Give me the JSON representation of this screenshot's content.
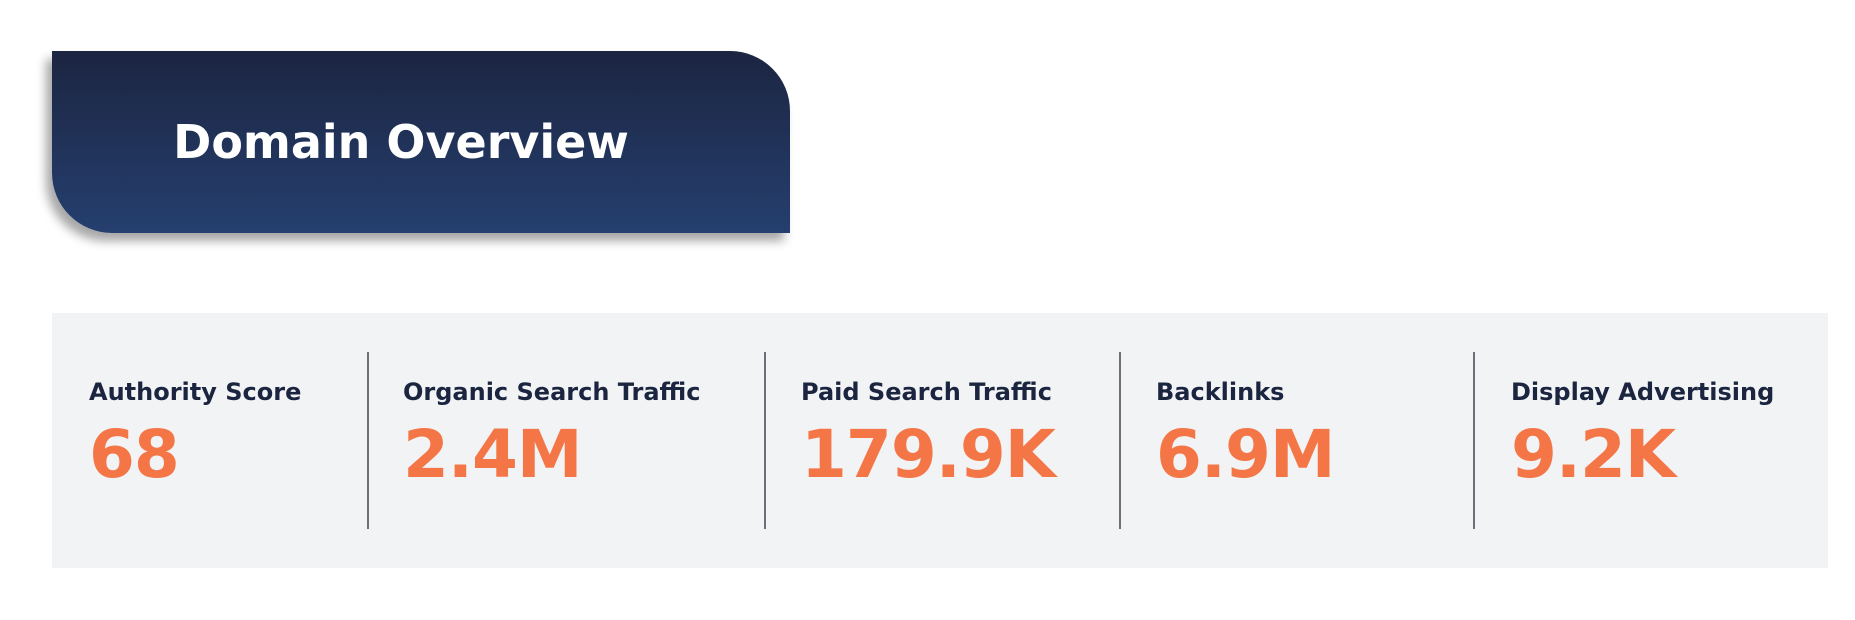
{
  "header": {
    "title": "Domain Overview"
  },
  "metrics": [
    {
      "label": "Authority Score",
      "value": "68"
    },
    {
      "label": "Organic Search Traffic",
      "value": "2.4M"
    },
    {
      "label": "Paid Search Traffic",
      "value": "179.9K"
    },
    {
      "label": "Backlinks",
      "value": "6.9M"
    },
    {
      "label": "Display Advertising",
      "value": "9.2K"
    }
  ]
}
